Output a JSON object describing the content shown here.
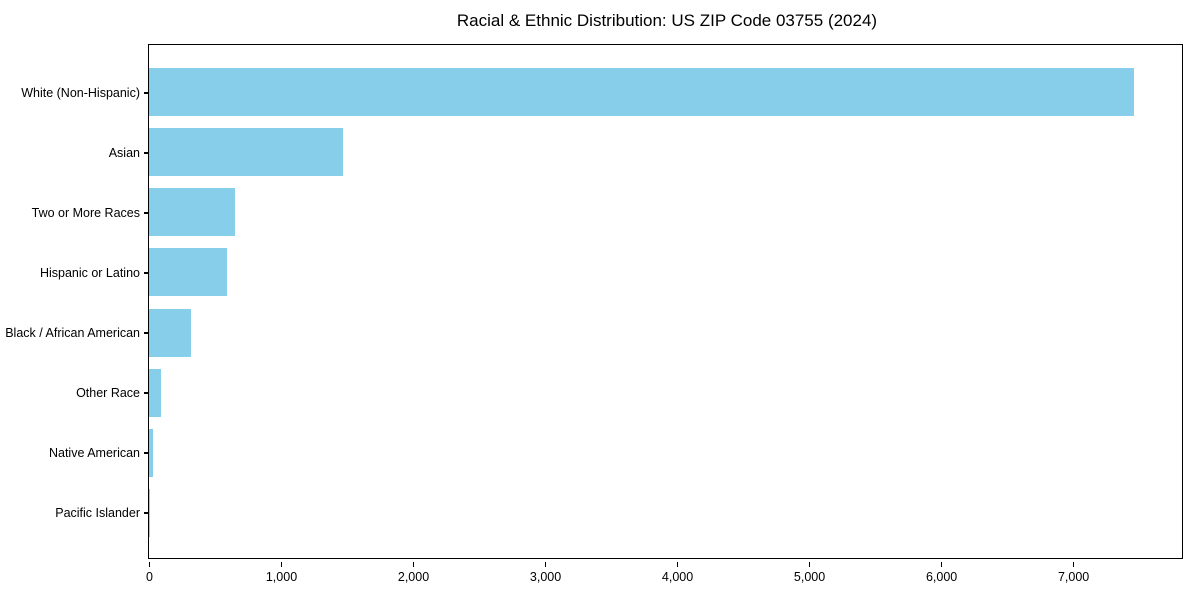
{
  "chart_data": {
    "type": "bar",
    "orientation": "horizontal",
    "title": "Racial & Ethnic Distribution: US ZIP Code 03755 (2024)",
    "categories": [
      "White (Non-Hispanic)",
      "Asian",
      "Two or More Races",
      "Hispanic or Latino",
      "Black / African American",
      "Other Race",
      "Native American",
      "Pacific Islander"
    ],
    "values": [
      7460,
      1470,
      650,
      590,
      320,
      90,
      30,
      5
    ],
    "xlabel": "",
    "ylabel": "",
    "xlim": [
      0,
      7840
    ],
    "xticks": [
      0,
      1000,
      2000,
      3000,
      4000,
      5000,
      6000,
      7000
    ],
    "xtick_labels": [
      "0",
      "1,000",
      "2,000",
      "3,000",
      "4,000",
      "5,000",
      "6,000",
      "7,000"
    ],
    "bar_color": "#87CEEB",
    "frame_color": "#000000",
    "text_color": "#000000",
    "background_color": "#ffffff",
    "grid": false,
    "legend": null
  }
}
